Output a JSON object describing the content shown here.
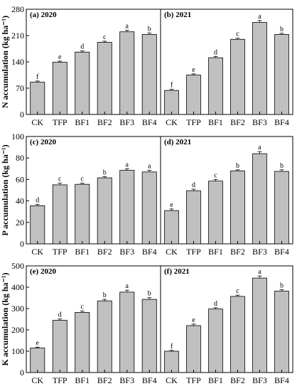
{
  "chart_data": [
    {
      "type": "bar",
      "ylabel": "N accumulation (kg ha⁻¹)",
      "ylim": [
        0,
        280
      ],
      "yticks": [
        0,
        70,
        140,
        210,
        280
      ],
      "panels": [
        {
          "title": "(a) 2020",
          "categories": [
            "CK",
            "TFP",
            "BF1",
            "BF2",
            "BF3",
            "BF4"
          ],
          "values": [
            86,
            139,
            166,
            192,
            220,
            213
          ],
          "errors": [
            3,
            3,
            3,
            3,
            4,
            4
          ],
          "letters": [
            "f",
            "e",
            "d",
            "c",
            "a",
            "b"
          ]
        },
        {
          "title": "(b) 2021",
          "categories": [
            "CK",
            "TFP",
            "BF1",
            "BF2",
            "BF3",
            "BF4"
          ],
          "values": [
            64,
            105,
            151,
            200,
            245,
            213
          ],
          "errors": [
            3,
            3,
            3,
            3,
            5,
            3
          ],
          "letters": [
            "f",
            "e",
            "d",
            "c",
            "a",
            "b"
          ]
        }
      ]
    },
    {
      "type": "bar",
      "ylabel": "P accumulation (kg ha⁻¹)",
      "ylim": [
        0,
        100
      ],
      "yticks": [
        0,
        20,
        40,
        60,
        80,
        100
      ],
      "panels": [
        {
          "title": "(c) 2020",
          "categories": [
            "CK",
            "TFP",
            "BF1",
            "BF2",
            "BF3",
            "BF4"
          ],
          "values": [
            35.5,
            55,
            55.5,
            61.5,
            68.5,
            67
          ],
          "errors": [
            1.2,
            1.5,
            1.0,
            1.0,
            1.5,
            1.5
          ],
          "letters": [
            "d",
            "c",
            "c",
            "b",
            "a",
            "a"
          ]
        },
        {
          "title": "(d) 2021",
          "categories": [
            "CK",
            "TFP",
            "BF1",
            "BF2",
            "BF3",
            "BF4"
          ],
          "values": [
            31,
            49.5,
            58.5,
            68,
            84,
            67.5
          ],
          "errors": [
            1.5,
            1.5,
            1.5,
            1.0,
            2.0,
            1.5
          ],
          "letters": [
            "e",
            "d",
            "c",
            "b",
            "a",
            "b"
          ]
        }
      ]
    },
    {
      "type": "bar",
      "ylabel": "K accumulation (kg ha⁻¹)",
      "ylim": [
        0,
        500
      ],
      "yticks": [
        0,
        100,
        200,
        300,
        400,
        500
      ],
      "panels": [
        {
          "title": "(e) 2020",
          "categories": [
            "CK",
            "TFP",
            "BF1",
            "BF2",
            "BF3",
            "BF4"
          ],
          "values": [
            115,
            245,
            282,
            336,
            377,
            343
          ],
          "errors": [
            4,
            6,
            6,
            7,
            9,
            8
          ],
          "letters": [
            "e",
            "d",
            "c",
            "b",
            "a",
            "b"
          ]
        },
        {
          "title": "(f) 2021",
          "categories": [
            "CK",
            "TFP",
            "BF1",
            "BF2",
            "BF3",
            "BF4"
          ],
          "values": [
            100,
            220,
            298,
            357,
            443,
            382
          ],
          "errors": [
            4,
            7,
            6,
            6,
            10,
            7
          ],
          "letters": [
            "f",
            "e",
            "d",
            "c",
            "a",
            "b"
          ]
        }
      ]
    }
  ]
}
